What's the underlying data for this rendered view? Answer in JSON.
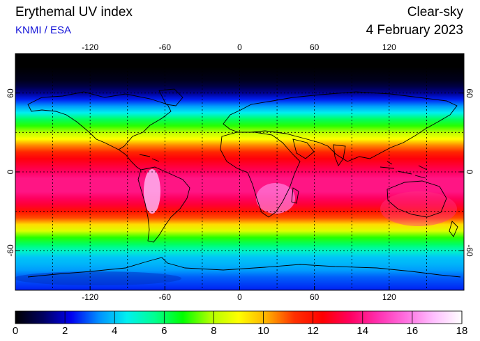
{
  "header": {
    "title": "Erythemal UV index",
    "subtitle": "KNMI / ESA",
    "mode": "Clear-sky",
    "date": "4 February 2023"
  },
  "map": {
    "projection": "equirectangular",
    "lon_range": [
      -180,
      180
    ],
    "lat_range": [
      -90,
      90
    ],
    "lon_ticks": [
      -120,
      -60,
      0,
      60,
      120
    ],
    "lon_tick_labels": [
      "-120",
      "-60",
      "0",
      "60",
      "120"
    ],
    "lat_ticks": [
      60,
      0,
      -60
    ],
    "lat_tick_labels": [
      "60",
      "0",
      "-60"
    ],
    "gridlines": "dotted, every 30 degrees",
    "coastlines": true
  },
  "colorbar": {
    "min": 0,
    "max": 18,
    "tick_values": [
      0,
      2,
      4,
      6,
      8,
      10,
      12,
      14,
      16,
      18
    ],
    "tick_labels": [
      "0",
      "2",
      "4",
      "6",
      "8",
      "10",
      "12",
      "14",
      "16",
      "18"
    ],
    "colors": [
      "#000000",
      "#000060",
      "#0000f0",
      "#0090ff",
      "#00f0f0",
      "#00ff90",
      "#00ff00",
      "#b0ff00",
      "#ffff00",
      "#ffb000",
      "#ff3000",
      "#ff0000",
      "#ff0060",
      "#ff30b0",
      "#ff70e0",
      "#ffc0ff",
      "#ffffff"
    ]
  },
  "uv_profile_by_latitude": {
    "latitudes": [
      90,
      80,
      70,
      65,
      60,
      55,
      50,
      45,
      40,
      35,
      30,
      25,
      20,
      15,
      10,
      5,
      0,
      -5,
      -10,
      -15,
      -20,
      -25,
      -30,
      -35,
      -40,
      -45,
      -50,
      -55,
      -60,
      -65,
      -70,
      -75,
      -80,
      -90
    ],
    "uv_values": [
      0,
      0,
      0.3,
      0.8,
      1.5,
      2.5,
      3.5,
      4.5,
      6,
      7,
      8,
      9,
      10.5,
      11.5,
      12.5,
      13,
      13.5,
      14,
      14,
      14,
      13.5,
      13,
      12,
      11,
      9.5,
      8.5,
      7,
      6,
      5,
      4,
      3.8,
      3.5,
      3,
      2.5
    ]
  }
}
